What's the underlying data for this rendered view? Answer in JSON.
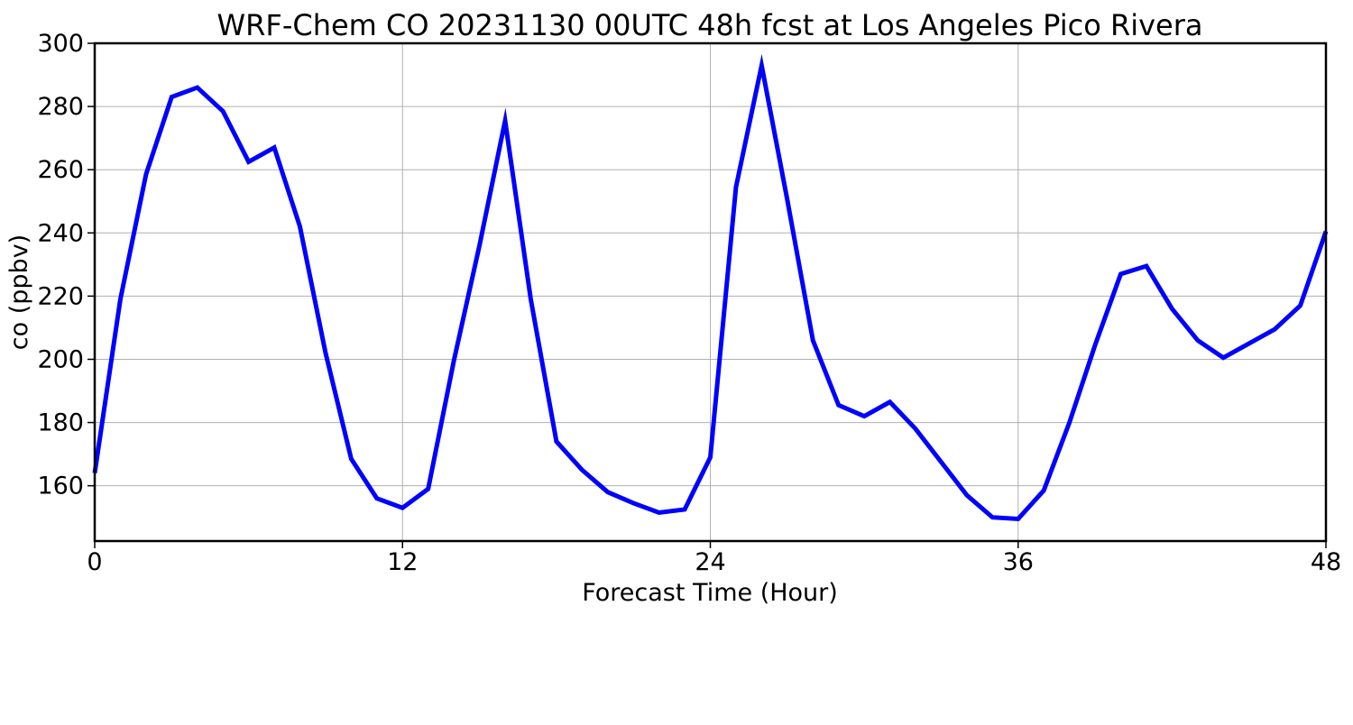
{
  "chart_data": {
    "type": "line",
    "title": "WRF-Chem CO  20231130 00UTC 48h fcst at Los Angeles Pico Rivera",
    "xlabel": "Forecast Time (Hour)",
    "ylabel": "co  (ppbv)",
    "xlim": [
      0,
      48
    ],
    "ylim": [
      142.5,
      300
    ],
    "xticks": [
      0,
      12,
      24,
      36,
      48
    ],
    "yticks": [
      160,
      180,
      200,
      220,
      240,
      260,
      280,
      300
    ],
    "grid": true,
    "line_color": "#0000ff",
    "x": [
      0,
      1,
      2,
      3,
      4,
      5,
      6,
      7,
      8,
      9,
      10,
      11,
      12,
      13,
      14,
      15,
      16,
      17,
      18,
      19,
      20,
      21,
      22,
      23,
      24,
      25,
      26,
      27,
      28,
      29,
      30,
      31,
      32,
      33,
      34,
      35,
      36,
      37,
      38,
      39,
      40,
      41,
      42,
      43,
      44,
      45,
      46,
      47,
      48
    ],
    "series": [
      {
        "values": [
          164,
          219,
          258.5,
          283,
          286,
          278.5,
          262.5,
          267,
          242,
          202,
          168.5,
          156,
          153,
          159,
          199.5,
          236,
          275.5,
          219,
          174,
          165,
          158,
          154.5,
          151.5,
          152.5,
          169,
          254.5,
          293,
          250.5,
          206,
          185.5,
          182,
          186.5,
          178,
          167.5,
          157,
          150,
          149.5,
          158.5,
          180,
          204.5,
          227,
          229.5,
          216,
          206,
          200.5,
          205,
          209.5,
          217,
          240.5
        ]
      }
    ]
  }
}
